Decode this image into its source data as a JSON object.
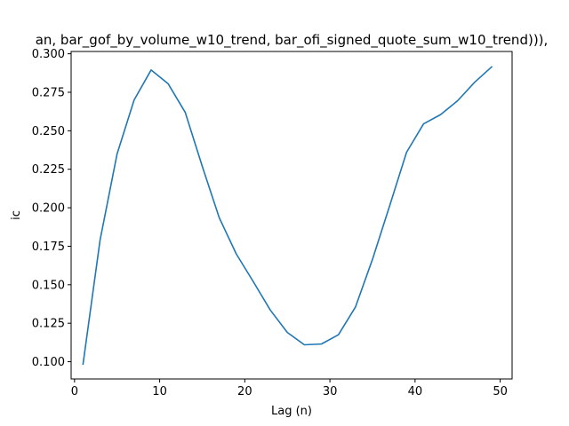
{
  "chart_data": {
    "type": "line",
    "title": "an, bar_gof_by_volume_w10_trend, bar_ofi_signed_quote_sum_w10_trend))),",
    "xlabel": "Lag (n)",
    "ylabel": "ic",
    "xlim": [
      -0.4,
      51.4
    ],
    "ylim": [
      0.0888,
      0.3015
    ],
    "xticks": [
      0,
      10,
      20,
      30,
      40,
      50
    ],
    "yticks": [
      0.1,
      0.125,
      0.15,
      0.175,
      0.2,
      0.225,
      0.25,
      0.275,
      0.3
    ],
    "ytick_labels": [
      "0.100",
      "0.125",
      "0.150",
      "0.175",
      "0.200",
      "0.225",
      "0.250",
      "0.275",
      "0.300"
    ],
    "grid": false,
    "series": [
      {
        "color": "#1f77b4",
        "x": [
          1,
          3,
          5,
          7,
          9,
          11,
          13,
          15,
          17,
          19,
          21,
          23,
          25,
          27,
          29,
          31,
          33,
          35,
          37,
          39,
          41,
          43,
          45,
          47,
          49
        ],
        "y": [
          0.0985,
          0.179,
          0.235,
          0.27,
          0.2895,
          0.2805,
          0.262,
          0.227,
          0.1935,
          0.17,
          0.152,
          0.1335,
          0.119,
          0.111,
          0.1115,
          0.1175,
          0.1355,
          0.1665,
          0.201,
          0.236,
          0.2545,
          0.2605,
          0.2695,
          0.2815,
          0.2915
        ]
      }
    ]
  }
}
